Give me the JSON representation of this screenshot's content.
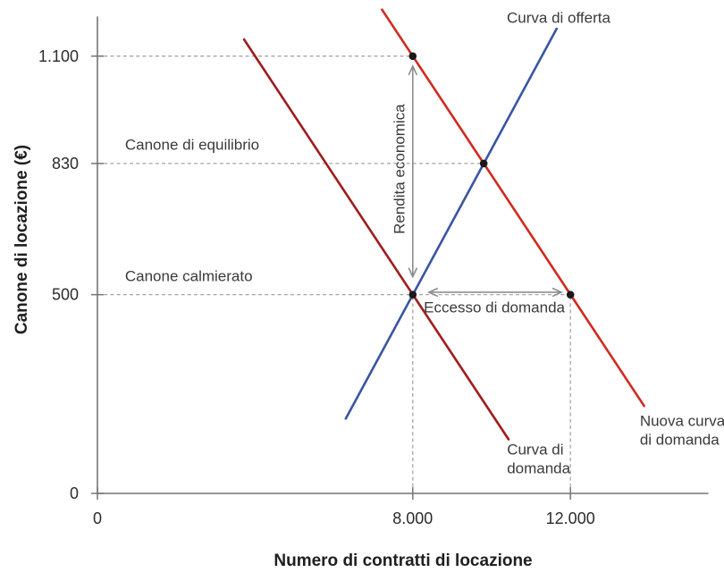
{
  "chart_data": {
    "type": "line",
    "title": "",
    "xlabel": "Numero di contratti di locazione",
    "ylabel": "Canone di locazione (€)",
    "xlim": [
      0,
      15500
    ],
    "ylim": [
      0,
      1200
    ],
    "grid": "dashed reference guides only",
    "legend_position": "labels drawn next to curves",
    "x_ticks": [
      {
        "value": 0,
        "label": "0"
      },
      {
        "value": 8000,
        "label": "8.000"
      },
      {
        "value": 12000,
        "label": "12.000"
      }
    ],
    "y_ticks": [
      {
        "value": 0,
        "label": "0"
      },
      {
        "value": 500,
        "label": "500"
      },
      {
        "value": 830,
        "label": "830"
      },
      {
        "value": 1100,
        "label": "1.100"
      }
    ],
    "series": [
      {
        "name": "supply-curve",
        "label": "Curva di offerta",
        "color": "#3a55a1",
        "points": [
          [
            6300,
            188
          ],
          [
            11650,
            1169
          ]
        ]
      },
      {
        "name": "demand-curve",
        "label": "Curva di domanda",
        "color": "#9f1c1e",
        "points": [
          [
            3720,
            1142
          ],
          [
            10430,
            136
          ]
        ]
      },
      {
        "name": "new-demand-curve",
        "label": "Nuova curva di domanda",
        "color": "#d02a1e",
        "points": [
          [
            7220,
            1217
          ],
          [
            13870,
            220
          ]
        ]
      }
    ],
    "key_points": [
      {
        "name": "new-demand-at-controlled-quantity",
        "x": 8000,
        "y": 1100
      },
      {
        "name": "equilibrium",
        "x": 9800,
        "y": 830
      },
      {
        "name": "controlled-rent-point",
        "x": 8000,
        "y": 500
      },
      {
        "name": "new-demand-at-controlled-rent",
        "x": 12000,
        "y": 500
      }
    ],
    "guides": [
      {
        "type": "h",
        "at": 1100,
        "from": 0,
        "to": 8000
      },
      {
        "type": "h",
        "at": 830,
        "from": 0,
        "to": 9800
      },
      {
        "type": "h",
        "at": 500,
        "from": 0,
        "to": 12000
      },
      {
        "type": "v",
        "at": 8000,
        "from": 0,
        "to": 500
      },
      {
        "type": "v",
        "at": 12000,
        "from": 0,
        "to": 500
      }
    ],
    "arrows": [
      {
        "name": "economic-rent-arrow",
        "x1": 8000,
        "y1": 545,
        "x2": 8000,
        "y2": 1075
      },
      {
        "name": "excess-demand-arrow",
        "x1": 8410,
        "y1": 506,
        "x2": 11770,
        "y2": 506
      }
    ],
    "annotations": [
      {
        "name": "supply-curve-label",
        "text": "Curva di offerta",
        "x": 11700,
        "y": 1196,
        "anchor": "middle"
      },
      {
        "name": "demand-curve-label",
        "lines": [
          "Curva di",
          "domanda"
        ],
        "x": 10390,
        "y": 110,
        "anchor": "start"
      },
      {
        "name": "new-demand-curve-label",
        "lines": [
          "Nuova curva",
          "di domanda"
        ],
        "x": 13760,
        "y": 182,
        "anchor": "start"
      },
      {
        "name": "equilibrium-rent-label",
        "text": "Canone di equilibrio",
        "x": 700,
        "y": 877,
        "anchor": "start"
      },
      {
        "name": "controlled-rent-label",
        "text": "Canone calmierato",
        "x": 700,
        "y": 546,
        "anchor": "start"
      },
      {
        "name": "economic-rent-label",
        "text": "Rendita economica",
        "x": 7660,
        "y": 816,
        "anchor": "middle",
        "rotate": -90
      },
      {
        "name": "excess-demand-label",
        "text": "Eccesso di domanda",
        "x": 10070,
        "y": 468,
        "anchor": "middle"
      }
    ],
    "colors": {
      "guide": "#a6a6a6",
      "arrow": "#8d8d8d",
      "axis": "#757575",
      "marker": "#1a1a1a",
      "annotation": "#3a3a3a",
      "tick_label": "#2b2b2b",
      "title": "#1f1f1f"
    }
  }
}
